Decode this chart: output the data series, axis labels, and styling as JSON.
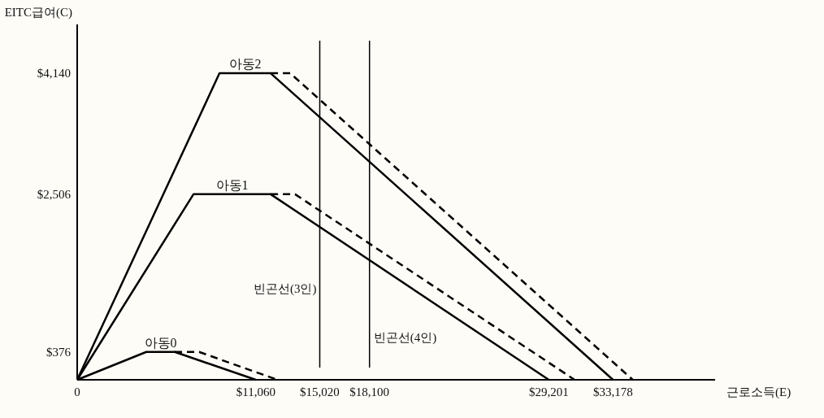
{
  "chart_data": {
    "type": "line",
    "xlabel": "근로소득(E)",
    "ylabel": "EITC급여(C)",
    "xlim": [
      0,
      39500
    ],
    "ylim": [
      0,
      4800
    ],
    "xticks": [
      {
        "value": 0,
        "label": "0"
      },
      {
        "value": 11060,
        "label": "$11,060"
      },
      {
        "value": 15020,
        "label": "$15,020"
      },
      {
        "value": 18100,
        "label": "$18,100"
      },
      {
        "value": 29201,
        "label": "$29,201"
      },
      {
        "value": 33178,
        "label": "$33,178"
      }
    ],
    "yticks": [
      {
        "value": 376,
        "label": "$376"
      },
      {
        "value": 2506,
        "label": "$2,506"
      },
      {
        "value": 4140,
        "label": "$4,140"
      }
    ],
    "series": [
      {
        "name": "아동2",
        "color": "#000000",
        "line_style": "solid",
        "x": [
          0,
          8810,
          11980,
          33178
        ],
        "values": [
          0,
          4140,
          4140,
          0
        ]
      },
      {
        "color": "#000000",
        "line_style": "dashed",
        "x": [
          11980,
          13190,
          34400
        ],
        "values": [
          4140,
          4140,
          0
        ]
      },
      {
        "name": "아동1",
        "color": "#000000",
        "line_style": "solid",
        "x": [
          0,
          7200,
          11980,
          29201
        ],
        "values": [
          0,
          2506,
          2506,
          0
        ]
      },
      {
        "color": "#000000",
        "line_style": "dashed",
        "x": [
          11980,
          13490,
          30800
        ],
        "values": [
          2506,
          2506,
          0
        ]
      },
      {
        "name": "아동0",
        "color": "#000000",
        "line_style": "solid",
        "x": [
          0,
          4280,
          6040,
          11060
        ],
        "values": [
          0,
          376,
          376,
          0
        ]
      },
      {
        "color": "#000000",
        "line_style": "dashed",
        "x": [
          6040,
          7550,
          12400
        ],
        "values": [
          376,
          376,
          0
        ]
      }
    ],
    "ref_lines": [
      {
        "axis": "x",
        "value": 15020,
        "label": "빈곤선(3인)",
        "color": "#000000"
      },
      {
        "axis": "x",
        "value": 18100,
        "label": "빈곤선(4인)",
        "color": "#000000"
      }
    ]
  }
}
